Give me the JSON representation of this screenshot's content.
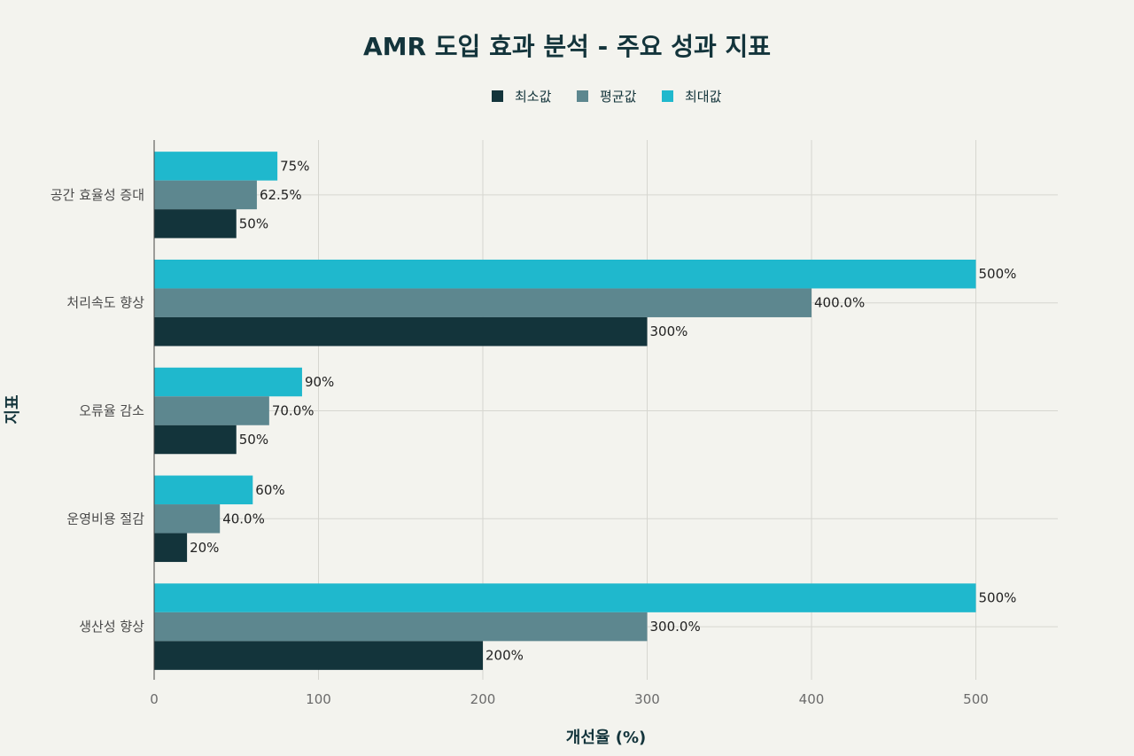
{
  "chart_data": {
    "type": "bar",
    "orientation": "horizontal",
    "title": "AMR 도입 효과 분석 - 주요 성과 지표",
    "xlabel": "개선율 (%)",
    "ylabel": "지표",
    "xlim": [
      0,
      550
    ],
    "xticks": [
      0,
      100,
      200,
      300,
      400,
      500
    ],
    "grid": true,
    "legend_position": "top-center",
    "categories": [
      "공간 효율성 증대",
      "처리속도 향상",
      "오류율 감소",
      "운영비용 절감",
      "생산성 향상"
    ],
    "series": [
      {
        "name": "최소값",
        "color": "#13343b",
        "values": [
          50,
          300,
          50,
          20,
          200
        ],
        "labels": [
          "50%",
          "300%",
          "50%",
          "20%",
          "200%"
        ]
      },
      {
        "name": "평균값",
        "color": "#5d878f",
        "values": [
          62.5,
          400,
          70,
          40,
          300
        ],
        "labels": [
          "62.5%",
          "400.0%",
          "70.0%",
          "40.0%",
          "300.0%"
        ]
      },
      {
        "name": "최대값",
        "color": "#1fb8cd",
        "values": [
          75,
          500,
          90,
          60,
          500
        ],
        "labels": [
          "75%",
          "500%",
          "90%",
          "60%",
          "500%"
        ]
      }
    ]
  }
}
